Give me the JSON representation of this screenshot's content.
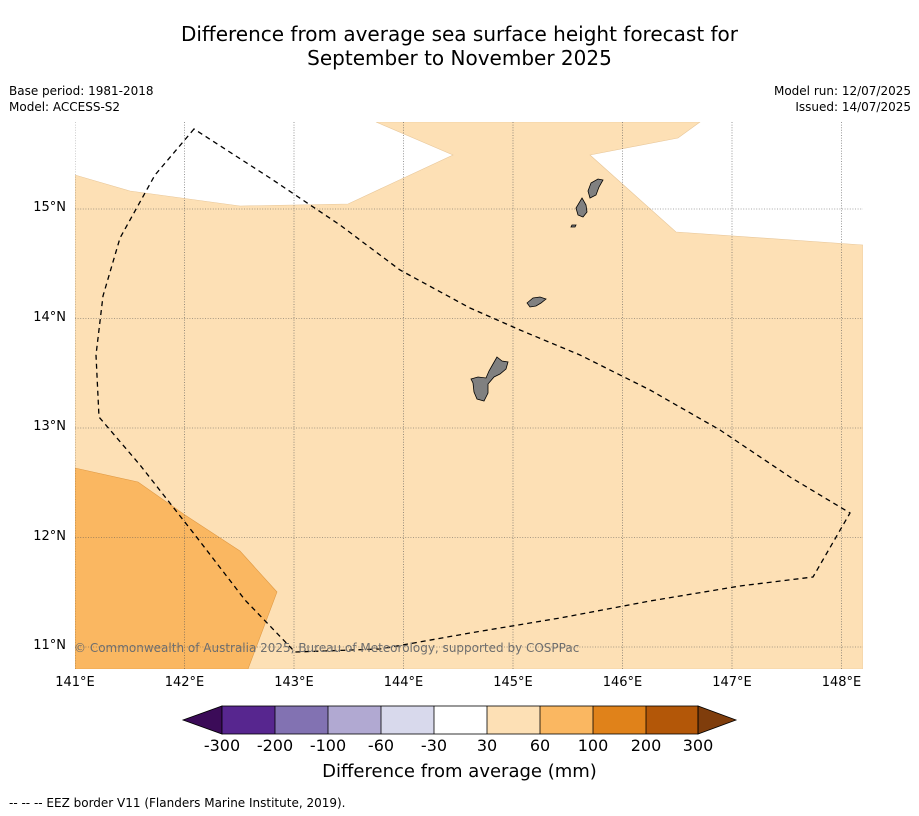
{
  "title": {
    "line1": "Difference from average sea surface height forecast for",
    "line2": "September to November 2025"
  },
  "meta_left": {
    "base_period": "Base period: 1981-2018",
    "model": "Model: ACCESS-S2"
  },
  "meta_right": {
    "model_run": "Model run: 12/07/2025",
    "issued": "Issued: 14/07/2025"
  },
  "map": {
    "lat_labels": [
      "15°N",
      "14°N",
      "13°N",
      "12°N",
      "11°N"
    ],
    "lon_labels": [
      "141°E",
      "142°E",
      "143°E",
      "144°E",
      "145°E",
      "146°E",
      "147°E",
      "148°E"
    ],
    "copyright": "© Commonwealth of Australia 2025, Bureau of Meteorology, supported by COSPPac",
    "colors": {
      "band_30_60": "#fde0b5",
      "band_60_100": "#fab761",
      "land": "#808080"
    }
  },
  "colorbar": {
    "ticks": [
      "-300",
      "-200",
      "-100",
      "-60",
      "-30",
      "30",
      "60",
      "100",
      "200",
      "300"
    ],
    "colors": [
      "#3b0b58",
      "#57268f",
      "#8272b2",
      "#b1a9d2",
      "#d8d9ec",
      "#ffffff",
      "#fde0b5",
      "#fab761",
      "#e0821a",
      "#b35708",
      "#7f3d0c"
    ],
    "label": "Difference from average (mm)"
  },
  "footnote": "--  --  -- EEZ border V11 (Flanders Marine Institute, 2019)."
}
